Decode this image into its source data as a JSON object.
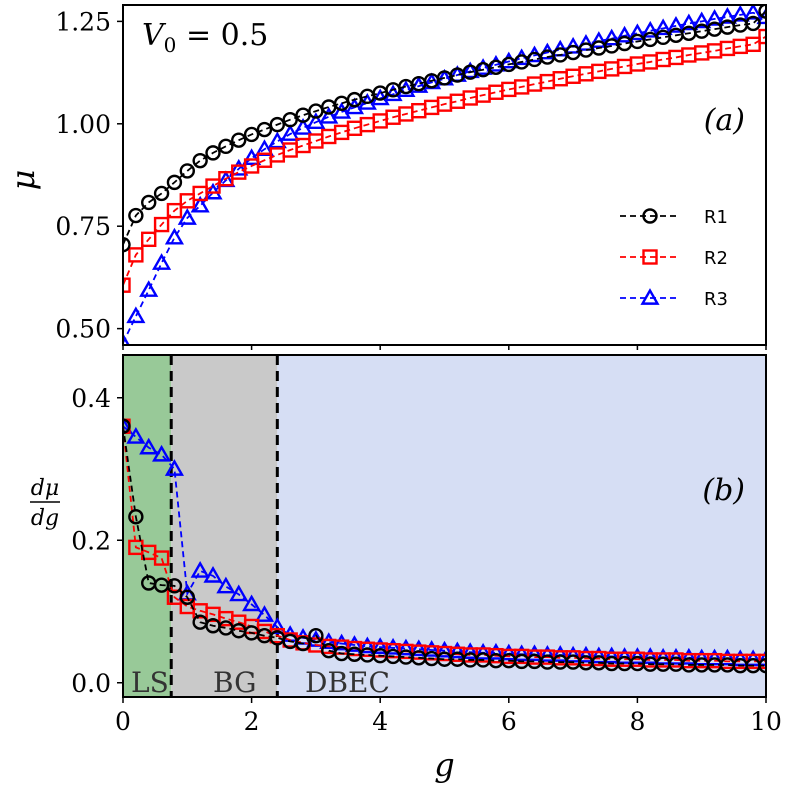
{
  "chart_data": [
    {
      "panel": "(a)",
      "type": "line",
      "annotation": {
        "base": "V",
        "sub": "0",
        "rest": " = 0.5"
      },
      "panel_label": "(a)",
      "xlabel": "",
      "ylabel": "μ",
      "xlim": [
        0,
        10
      ],
      "ylim": [
        0.46,
        1.29
      ],
      "yticks": [
        0.5,
        0.75,
        1.0,
        1.25
      ],
      "ytick_labels": [
        "0.50",
        "0.75",
        "1.00",
        "1.25"
      ],
      "x": [
        0.0,
        0.2,
        0.4,
        0.6,
        0.8,
        1.0,
        1.2,
        1.4,
        1.6,
        1.8,
        2.0,
        2.2,
        2.4,
        2.6,
        2.8,
        3.0,
        3.2,
        3.4,
        3.6,
        3.8,
        4.0,
        4.2,
        4.4,
        4.6,
        4.8,
        5.0,
        5.2,
        5.4,
        5.6,
        5.8,
        6.0,
        6.2,
        6.4,
        6.6,
        6.8,
        7.0,
        7.2,
        7.4,
        7.6,
        7.8,
        8.0,
        8.2,
        8.4,
        8.6,
        8.8,
        9.0,
        9.2,
        9.4,
        9.6,
        9.8,
        10.0
      ],
      "legend": {
        "location": "center-right",
        "entries": [
          "R1",
          "R2",
          "R3"
        ]
      },
      "series": [
        {
          "name": "R1",
          "color": "#000000",
          "marker": "circle",
          "values": [
            0.705,
            0.776,
            0.808,
            0.83,
            0.857,
            0.885,
            0.91,
            0.929,
            0.945,
            0.96,
            0.974,
            0.986,
            0.998,
            1.01,
            1.021,
            1.031,
            1.041,
            1.05,
            1.059,
            1.067,
            1.075,
            1.083,
            1.091,
            1.098,
            1.105,
            1.112,
            1.119,
            1.126,
            1.132,
            1.138,
            1.145,
            1.151,
            1.157,
            1.163,
            1.168,
            1.174,
            1.18,
            1.185,
            1.19,
            1.196,
            1.201,
            1.206,
            1.211,
            1.216,
            1.221,
            1.226,
            1.231,
            1.236,
            1.241,
            1.245,
            1.275
          ]
        },
        {
          "name": "R2",
          "color": "#ff0000",
          "marker": "square",
          "values": [
            0.606,
            0.68,
            0.718,
            0.754,
            0.788,
            0.812,
            0.83,
            0.848,
            0.866,
            0.882,
            0.897,
            0.911,
            0.924,
            0.936,
            0.947,
            0.958,
            0.969,
            0.979,
            0.989,
            0.998,
            1.007,
            1.016,
            1.024,
            1.032,
            1.04,
            1.048,
            1.055,
            1.063,
            1.07,
            1.077,
            1.084,
            1.09,
            1.097,
            1.103,
            1.11,
            1.116,
            1.122,
            1.128,
            1.134,
            1.14,
            1.146,
            1.151,
            1.157,
            1.162,
            1.168,
            1.173,
            1.178,
            1.184,
            1.189,
            1.194,
            1.213
          ]
        },
        {
          "name": "R3",
          "color": "#0000ff",
          "marker": "triangle",
          "values": [
            0.465,
            0.53,
            0.594,
            0.66,
            0.722,
            0.77,
            0.8,
            0.832,
            0.862,
            0.89,
            0.916,
            0.938,
            0.957,
            0.975,
            0.99,
            1.004,
            1.017,
            1.029,
            1.04,
            1.051,
            1.062,
            1.072,
            1.082,
            1.092,
            1.101,
            1.11,
            1.119,
            1.128,
            1.136,
            1.144,
            1.152,
            1.16,
            1.167,
            1.174,
            1.181,
            1.188,
            1.195,
            1.202,
            1.208,
            1.215,
            1.221,
            1.227,
            1.233,
            1.239,
            1.245,
            1.25,
            1.256,
            1.261,
            1.266,
            1.271,
            1.26
          ]
        }
      ]
    },
    {
      "panel": "(b)",
      "type": "line",
      "panel_label": "(b)",
      "xlabel": "g",
      "ylabel": {
        "numerator": "dμ",
        "denominator": "dg"
      },
      "xlim": [
        0,
        10
      ],
      "ylim": [
        -0.02,
        0.46
      ],
      "xticks": [
        0,
        2,
        4,
        6,
        8,
        10
      ],
      "xtick_labels": [
        "0",
        "2",
        "4",
        "6",
        "8",
        "10"
      ],
      "yticks": [
        0.0,
        0.2,
        0.4
      ],
      "ytick_labels": [
        "0.0",
        "0.2",
        "0.4"
      ],
      "regions": [
        {
          "label": "LS",
          "from": 0.0,
          "to": 0.75,
          "color": "#98c998"
        },
        {
          "label": "BG",
          "from": 0.75,
          "to": 2.4,
          "color": "#c9c9c9"
        },
        {
          "label": "DBEC",
          "from": 2.4,
          "to": 10.0,
          "color": "#d6def4"
        }
      ],
      "boundaries": [
        0.75,
        2.4
      ],
      "x": [
        0.0,
        0.2,
        0.4,
        0.6,
        0.8,
        1.0,
        1.2,
        1.4,
        1.6,
        1.8,
        2.0,
        2.2,
        2.4,
        2.6,
        2.8,
        3.0,
        3.2,
        3.4,
        3.6,
        3.8,
        4.0,
        4.2,
        4.4,
        4.6,
        4.8,
        5.0,
        5.2,
        5.4,
        5.6,
        5.8,
        6.0,
        6.2,
        6.4,
        6.6,
        6.8,
        7.0,
        7.2,
        7.4,
        7.6,
        7.8,
        8.0,
        8.2,
        8.4,
        8.6,
        8.8,
        9.0,
        9.2,
        9.4,
        9.6,
        9.8,
        10.0
      ],
      "series": [
        {
          "name": "R1",
          "color": "#000000",
          "marker": "circle",
          "values": [
            0.36,
            0.233,
            0.14,
            0.137,
            0.136,
            0.12,
            0.085,
            0.08,
            0.077,
            0.073,
            0.07,
            0.066,
            0.063,
            0.058,
            0.055,
            0.066,
            0.045,
            0.041,
            0.04,
            0.039,
            0.038,
            0.037,
            0.036,
            0.035,
            0.034,
            0.033,
            0.033,
            0.032,
            0.032,
            0.031,
            0.031,
            0.03,
            0.03,
            0.029,
            0.029,
            0.029,
            0.028,
            0.028,
            0.027,
            0.027,
            0.027,
            0.026,
            0.026,
            0.026,
            0.025,
            0.025,
            0.025,
            0.025,
            0.024,
            0.024,
            0.024
          ]
        },
        {
          "name": "R2",
          "color": "#ff0000",
          "marker": "square",
          "values": [
            0.36,
            0.19,
            0.183,
            0.175,
            0.12,
            0.107,
            0.101,
            0.096,
            0.09,
            0.085,
            0.079,
            0.072,
            0.066,
            0.06,
            0.056,
            0.053,
            0.051,
            0.05,
            0.048,
            0.047,
            0.046,
            0.045,
            0.044,
            0.043,
            0.042,
            0.041,
            0.04,
            0.039,
            0.039,
            0.038,
            0.037,
            0.037,
            0.036,
            0.036,
            0.035,
            0.035,
            0.034,
            0.034,
            0.033,
            0.033,
            0.033,
            0.032,
            0.032,
            0.032,
            0.031,
            0.031,
            0.031,
            0.03,
            0.03,
            0.03,
            0.03
          ]
        },
        {
          "name": "R3",
          "color": "#0000ff",
          "marker": "triangle",
          "values": [
            0.36,
            0.345,
            0.33,
            0.32,
            0.3,
            0.125,
            0.157,
            0.15,
            0.135,
            0.124,
            0.11,
            0.095,
            0.078,
            0.067,
            0.063,
            0.06,
            0.057,
            0.055,
            0.053,
            0.051,
            0.05,
            0.049,
            0.048,
            0.047,
            0.046,
            0.045,
            0.044,
            0.043,
            0.042,
            0.042,
            0.041,
            0.04,
            0.04,
            0.039,
            0.039,
            0.038,
            0.038,
            0.037,
            0.037,
            0.036,
            0.036,
            0.036,
            0.035,
            0.035,
            0.035,
            0.034,
            0.034,
            0.034,
            0.033,
            0.033,
            0.033
          ]
        }
      ]
    }
  ]
}
